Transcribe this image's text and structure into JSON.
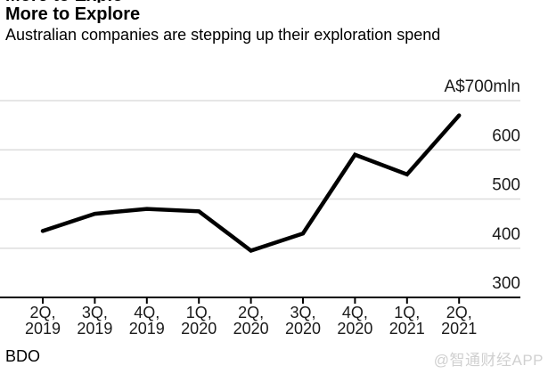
{
  "header": {
    "clipped_text": "More to Explore",
    "title": "More to Explore",
    "subtitle": "Australian companies are stepping up their exploration spend"
  },
  "chart_data": {
    "type": "line",
    "title": "More to Explore",
    "subtitle": "Australian companies are stepping up their exploration spend",
    "categories": [
      [
        "2Q,",
        "2019"
      ],
      [
        "3Q,",
        "2019"
      ],
      [
        "4Q,",
        "2019"
      ],
      [
        "1Q,",
        "2020"
      ],
      [
        "2Q,",
        "2020"
      ],
      [
        "3Q,",
        "2020"
      ],
      [
        "4Q,",
        "2020"
      ],
      [
        "1Q,",
        "2021"
      ],
      [
        "2Q,",
        "2021"
      ]
    ],
    "values": [
      435,
      470,
      480,
      475,
      395,
      430,
      590,
      550,
      670
    ],
    "ylabel_top": "A$700mln",
    "y_ticks": [
      700,
      600,
      500,
      400,
      300
    ],
    "ylim": [
      300,
      700
    ],
    "xlabel": "",
    "ylabel": "",
    "grid": true,
    "legend": false,
    "axis_side": "right"
  },
  "footer": {
    "source": "BDO",
    "watermark": "@智通财经APP"
  },
  "colors": {
    "line": "#000000",
    "grid": "#dddddd",
    "axis": "#000000",
    "tick": "#000000",
    "label_text": "#1a1a1a",
    "watermark": "#d0d0d0"
  }
}
